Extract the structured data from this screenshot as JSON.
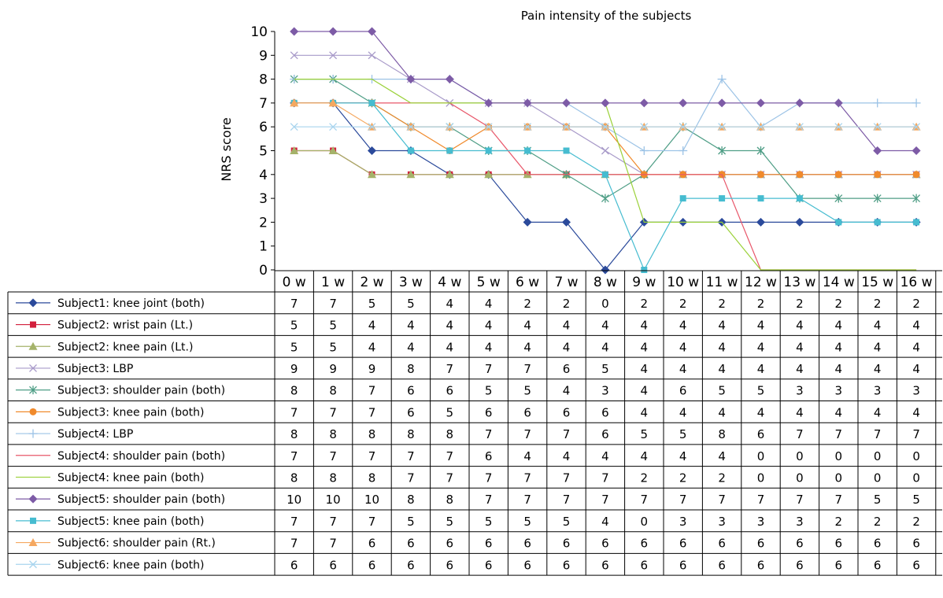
{
  "chart_data": {
    "type": "line",
    "title": "Pain intensity of the subjects",
    "ylabel": "NRS score",
    "xlabel": "",
    "ylim": [
      0,
      10
    ],
    "y_ticks": [
      "0",
      "1",
      "2",
      "3",
      "4",
      "5",
      "6",
      "7",
      "8",
      "9",
      "10"
    ],
    "categories": [
      "0 w",
      "1 w",
      "2 w",
      "3 w",
      "4 w",
      "5 w",
      "6 w",
      "7 w",
      "8 w",
      "9 w",
      "10 w",
      "11 w",
      "12 w",
      "13 w",
      "14 w",
      "15 w",
      "16 w"
    ],
    "legend_placement": "data table below plot",
    "grid": false,
    "series": [
      {
        "name": "Subject1: knee joint (both)",
        "color": "#2b4a9b",
        "marker": "diamond",
        "values": [
          7,
          7,
          5,
          5,
          4,
          4,
          2,
          2,
          0,
          2,
          2,
          2,
          2,
          2,
          2,
          2,
          2
        ]
      },
      {
        "name": "Subject2: wrist pain (Lt.)",
        "color": "#d21f3c",
        "marker": "square",
        "values": [
          5,
          5,
          4,
          4,
          4,
          4,
          4,
          4,
          4,
          4,
          4,
          4,
          4,
          4,
          4,
          4,
          4
        ]
      },
      {
        "name": "Subject2: knee pain (Lt.)",
        "color": "#a5b36a",
        "marker": "triangle",
        "values": [
          5,
          5,
          4,
          4,
          4,
          4,
          4,
          4,
          4,
          4,
          4,
          4,
          4,
          4,
          4,
          4,
          4
        ]
      },
      {
        "name": "Subject3: LBP",
        "color": "#a89ac9",
        "marker": "x",
        "values": [
          9,
          9,
          9,
          8,
          7,
          7,
          7,
          6,
          5,
          4,
          4,
          4,
          4,
          4,
          4,
          4,
          4
        ]
      },
      {
        "name": "Subject3: shoulder pain (both)",
        "color": "#4f9e86",
        "marker": "star",
        "values": [
          8,
          8,
          7,
          6,
          6,
          5,
          5,
          4,
          3,
          4,
          6,
          5,
          5,
          3,
          3,
          3,
          3
        ]
      },
      {
        "name": "Subject3: knee pain (both)",
        "color": "#f08a2c",
        "marker": "circle",
        "values": [
          7,
          7,
          7,
          6,
          5,
          6,
          6,
          6,
          6,
          4,
          4,
          4,
          4,
          4,
          4,
          4,
          4
        ]
      },
      {
        "name": "Subject4: LBP",
        "color": "#9cc3e6",
        "marker": "plus",
        "values": [
          8,
          8,
          8,
          8,
          8,
          7,
          7,
          7,
          6,
          5,
          5,
          8,
          6,
          7,
          7,
          7,
          7
        ]
      },
      {
        "name": "Subject4: shoulder pain (both)",
        "color": "#e8576a",
        "marker": "none",
        "values": [
          7,
          7,
          7,
          7,
          7,
          6,
          4,
          4,
          4,
          4,
          4,
          4,
          0,
          0,
          0,
          0,
          0
        ]
      },
      {
        "name": "Subject4: knee pain (both)",
        "color": "#9bd13a",
        "marker": "none",
        "values": [
          8,
          8,
          8,
          7,
          7,
          7,
          7,
          7,
          7,
          2,
          2,
          2,
          0,
          0,
          0,
          0,
          0
        ]
      },
      {
        "name": "Subject5: shoulder pain (both)",
        "color": "#7d5ba6",
        "marker": "diamond",
        "values": [
          10,
          10,
          10,
          8,
          8,
          7,
          7,
          7,
          7,
          7,
          7,
          7,
          7,
          7,
          7,
          5,
          5
        ]
      },
      {
        "name": "Subject5: knee pain (both)",
        "color": "#46bcd0",
        "marker": "square",
        "values": [
          7,
          7,
          7,
          5,
          5,
          5,
          5,
          5,
          4,
          0,
          3,
          3,
          3,
          3,
          2,
          2,
          2
        ]
      },
      {
        "name": "Subject6: shoulder pain (Rt.)",
        "color": "#f5a860",
        "marker": "triangle",
        "values": [
          7,
          7,
          6,
          6,
          6,
          6,
          6,
          6,
          6,
          6,
          6,
          6,
          6,
          6,
          6,
          6,
          6
        ]
      },
      {
        "name": "Subject6: knee pain (both)",
        "color": "#a8d4ee",
        "marker": "x",
        "values": [
          6,
          6,
          6,
          6,
          6,
          6,
          6,
          6,
          6,
          6,
          6,
          6,
          6,
          6,
          6,
          6,
          6
        ]
      }
    ]
  }
}
